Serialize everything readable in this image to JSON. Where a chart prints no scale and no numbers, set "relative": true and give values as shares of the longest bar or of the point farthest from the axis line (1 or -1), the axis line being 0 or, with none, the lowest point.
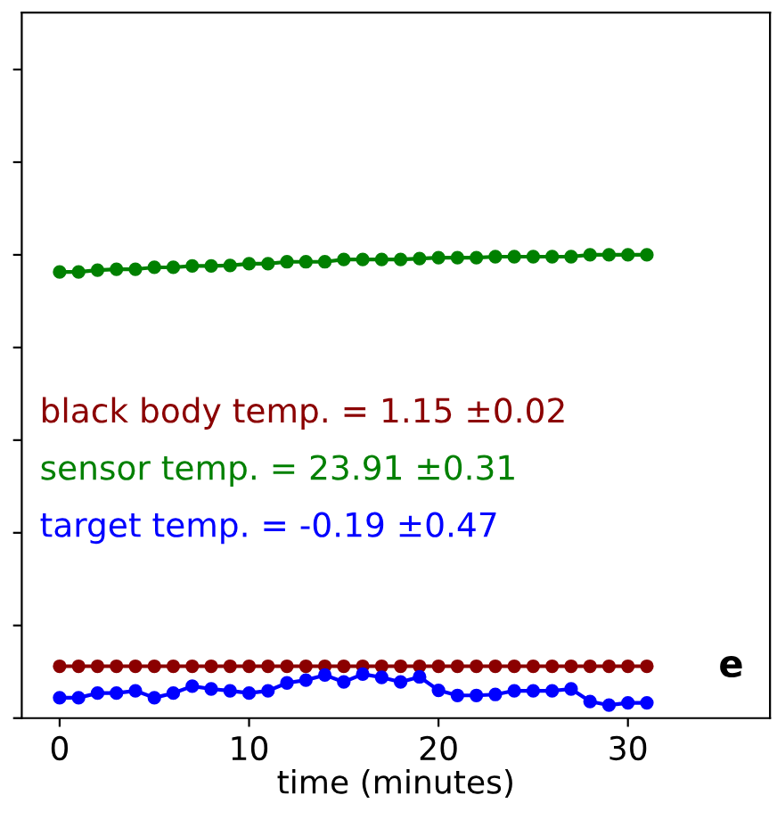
{
  "chart_data": {
    "type": "line",
    "xlabel": "time (minutes)",
    "relative": true,
    "x": [
      0,
      1,
      2,
      3,
      4,
      5,
      6,
      7,
      8,
      9,
      10,
      11,
      12,
      13,
      14,
      15,
      16,
      17,
      18,
      19,
      20,
      21,
      22,
      23,
      24,
      25,
      26,
      27,
      28,
      29,
      30,
      31
    ],
    "series": [
      {
        "color": "#8b0000",
        "values": [
          0.112,
          0.112,
          0.112,
          0.112,
          0.112,
          0.112,
          0.112,
          0.112,
          0.112,
          0.112,
          0.112,
          0.112,
          0.112,
          0.112,
          0.112,
          0.112,
          0.112,
          0.112,
          0.112,
          0.112,
          0.112,
          0.112,
          0.112,
          0.112,
          0.112,
          0.112,
          0.112,
          0.112,
          0.112,
          0.112,
          0.112,
          0.112
        ]
      },
      {
        "color": "#008000",
        "values": [
          0.963,
          0.963,
          0.967,
          0.969,
          0.969,
          0.973,
          0.973,
          0.976,
          0.976,
          0.977,
          0.981,
          0.981,
          0.985,
          0.985,
          0.985,
          0.99,
          0.99,
          0.99,
          0.99,
          0.992,
          0.994,
          0.994,
          0.994,
          0.996,
          0.996,
          0.996,
          0.996,
          0.996,
          1.0,
          1.0,
          1.0,
          1.0
        ]
      },
      {
        "color": "#0000ff",
        "values": [
          0.044,
          0.044,
          0.054,
          0.054,
          0.059,
          0.044,
          0.054,
          0.069,
          0.063,
          0.059,
          0.054,
          0.059,
          0.076,
          0.082,
          0.093,
          0.078,
          0.095,
          0.088,
          0.078,
          0.089,
          0.06,
          0.049,
          0.049,
          0.051,
          0.059,
          0.059,
          0.059,
          0.063,
          0.036,
          0.028,
          0.033,
          0.033
        ]
      }
    ],
    "annotations": [
      "black body temp. = 1.15 ±0.02",
      "sensor temp. = 23.91 ±0.31",
      "target temp. = -0.19 ±0.47",
      "e"
    ],
    "xlim": [
      -2,
      37.5
    ],
    "xticks": [
      0,
      10,
      20,
      30
    ],
    "tick_labels": "x",
    "marker": "circle",
    "line_style": "solid"
  }
}
